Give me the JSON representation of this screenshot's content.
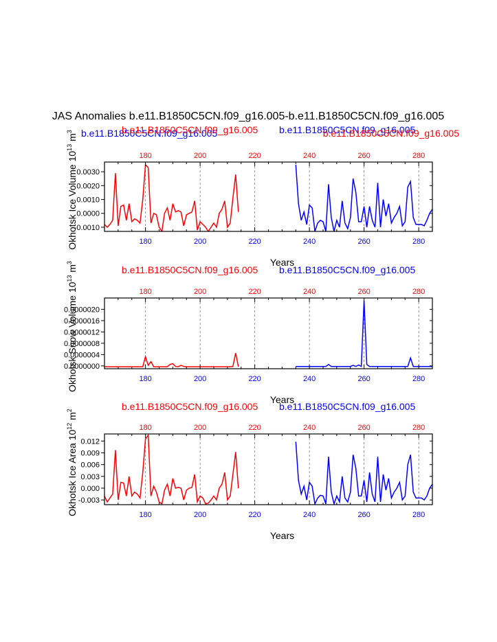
{
  "page_title": "JAS Anomalies b.e11.B1850C5CN.f09_g16.005-b.e11.B1850C5CN.f09_g16.005",
  "colors": {
    "run_a": "#ff0000",
    "run_b": "#0000ff",
    "axis": "#000000",
    "grid": "#777777"
  },
  "chart_data": [
    {
      "type": "line",
      "ylabel": "Okhotsk Ice Volume 10",
      "ylabel_sup": "13",
      "ylabel_unit": " m",
      "ylabel_unit_sup": "3",
      "xlabel": "Years",
      "xlim": [
        165,
        285
      ],
      "ylim": [
        -0.0013,
        0.0037
      ],
      "yticks": [
        "0.0030",
        "0.0020",
        "0.0010",
        "0.0000",
        "-0.0010"
      ],
      "ytick_values": [
        0.003,
        0.002,
        0.001,
        0.0,
        -0.001
      ],
      "xticks_bottom": [
        "180",
        "200",
        "220",
        "240",
        "260",
        "280"
      ],
      "xtick_values": [
        180,
        200,
        220,
        240,
        260,
        280
      ],
      "xticks_top": [
        "180",
        "200",
        "220",
        "240",
        "260",
        "280"
      ],
      "grid_x": [
        180,
        200,
        220,
        240,
        260,
        280
      ],
      "top_labels": [
        {
          "text": "b.e11.B1850C5CN.f09_g16.005",
          "color": "#0000ff"
        },
        {
          "text": "b.e11.B1850C5CN.f09_g16.005",
          "color": "#ff0000"
        },
        {
          "text": "b.e11.B1850C5CN.f09_g16.005",
          "color": "#0000ff"
        },
        {
          "text": "b.e11.B1850C5CN.f09_g16.005",
          "color": "#ff0000"
        }
      ],
      "series": [
        {
          "color": "#ff0000",
          "x": [
            165,
            166,
            167,
            168,
            169,
            170,
            171,
            172,
            173,
            174,
            175,
            176,
            177,
            178,
            179,
            180,
            181,
            182,
            183,
            184,
            185,
            186,
            187,
            188,
            189,
            190,
            191,
            192,
            193,
            194,
            195,
            196,
            197,
            198,
            199,
            200,
            201,
            202,
            203,
            204,
            205,
            206,
            207,
            208,
            209,
            210,
            211,
            212,
            213,
            214
          ],
          "y": [
            -0.0008,
            -0.001,
            -0.0008,
            -0.0005,
            0.0029,
            -0.0009,
            0.0005,
            0.0006,
            -0.0005,
            0.0007,
            -0.0006,
            -0.0004,
            -0.0005,
            -0.0007,
            0.001,
            0.0035,
            0.0033,
            -0.0007,
            0.0,
            -0.0001,
            -0.001,
            -0.0013,
            0.0,
            0.0004,
            -0.0005,
            0.0007,
            0.0001,
            0.0002,
            0.0001,
            -0.0009,
            -0.0001,
            0.0,
            0.0001,
            0.0009,
            -0.0012,
            -0.0006,
            -0.0008,
            -0.001,
            -0.0013,
            -0.001,
            -0.0007,
            -0.001,
            0.0,
            0.0003,
            0.0009,
            -0.001,
            -0.0007,
            0.0011,
            0.0028,
            0.0001
          ]
        },
        {
          "color": "#0000ff",
          "x": [
            235,
            236,
            237,
            238,
            239,
            240,
            241,
            242,
            243,
            244,
            245,
            246,
            247,
            248,
            249,
            250,
            251,
            252,
            253,
            254,
            255,
            256,
            257,
            258,
            259,
            260,
            261,
            262,
            263,
            264,
            265,
            266,
            267,
            268,
            269,
            270,
            271,
            272,
            273,
            274,
            275,
            276,
            277,
            278,
            279,
            280,
            281,
            282,
            283,
            284,
            285
          ],
          "y": [
            0.0035,
            0.0007,
            -0.0005,
            0.0001,
            -0.0008,
            0.0006,
            0.0004,
            -0.0013,
            -0.0007,
            -0.0005,
            -0.0006,
            -0.0013,
            0.0021,
            -0.0003,
            -0.0013,
            -0.0005,
            -0.001,
            0.0009,
            -0.0007,
            -0.0011,
            -0.0003,
            0.0025,
            0.0015,
            -0.0006,
            -0.0006,
            0.0005,
            -0.001,
            0.0005,
            -0.0005,
            -0.001,
            0.0022,
            -0.001,
            0.001,
            -0.0002,
            0.0007,
            -0.0007,
            -0.0003,
            0.0,
            0.0005,
            -0.0009,
            -0.0006,
            0.0019,
            0.0023,
            -0.0003,
            -0.0008,
            -0.0008,
            -0.0008,
            -0.0009,
            -0.0005,
            0.0,
            0.0003
          ]
        }
      ]
    },
    {
      "type": "line",
      "ylabel": "Okhotsk Snow Volume 10",
      "ylabel_sup": "13",
      "ylabel_unit": " m",
      "ylabel_unit_sup": "3",
      "xlabel": "Years",
      "xlim": [
        165,
        285
      ],
      "ylim": [
        -1e-07,
        2.4e-06
      ],
      "yticks": [
        "0.0000020",
        "0.0000016",
        "0.0000012",
        "0.0000008",
        "0.0000004",
        "0.0000000"
      ],
      "ytick_values": [
        2e-06,
        1.6e-06,
        1.2e-06,
        8e-07,
        4e-07,
        0.0
      ],
      "xticks_bottom": [
        "180",
        "200",
        "220",
        "240",
        "260",
        "280"
      ],
      "xtick_values": [
        180,
        200,
        220,
        240,
        260,
        280
      ],
      "xticks_top": [
        "180",
        "200",
        "220",
        "240",
        "260",
        "280"
      ],
      "grid_x": [
        180,
        200,
        220,
        240,
        260,
        280
      ],
      "top_labels": [
        {
          "text": "b.e11.B1850C5CN.f09_g16.005",
          "color": "#ff0000"
        },
        {
          "text": "b.e11.B1850C5CN.f09_g16.005",
          "color": "#0000ff"
        }
      ],
      "series": [
        {
          "color": "#ff0000",
          "x": [
            165,
            166,
            167,
            168,
            169,
            170,
            171,
            172,
            173,
            174,
            175,
            176,
            177,
            178,
            179,
            180,
            181,
            182,
            183,
            184,
            185,
            186,
            187,
            188,
            189,
            190,
            191,
            192,
            193,
            194,
            195,
            196,
            197,
            198,
            199,
            200,
            201,
            202,
            203,
            204,
            205,
            206,
            207,
            208,
            209,
            210,
            211,
            212,
            213,
            214
          ],
          "y": [
            -3e-08,
            -3e-08,
            -3e-08,
            -3e-08,
            -3e-08,
            -3e-08,
            -3e-08,
            -3e-08,
            -3e-08,
            -3e-08,
            -3e-08,
            -3e-08,
            -3e-08,
            -3e-08,
            -3e-08,
            3.3e-07,
            2e-08,
            1.5e-07,
            -3e-08,
            -3e-08,
            -3e-08,
            -3e-08,
            -3e-08,
            -3e-08,
            5e-08,
            8e-08,
            -2e-08,
            -3e-08,
            2e-08,
            -2e-08,
            -3e-08,
            -3e-08,
            -3e-08,
            -3e-08,
            -3e-08,
            -3e-08,
            -3e-08,
            -3e-08,
            -3e-08,
            -3e-08,
            -3e-08,
            -3e-08,
            -3e-08,
            -3e-08,
            -3e-08,
            -3e-08,
            -3e-08,
            -2e-08,
            4.5e-07,
            -3e-08
          ]
        },
        {
          "color": "#0000ff",
          "x": [
            235,
            236,
            237,
            238,
            239,
            240,
            241,
            242,
            243,
            244,
            245,
            246,
            247,
            248,
            249,
            250,
            251,
            252,
            253,
            254,
            255,
            256,
            257,
            258,
            259,
            260,
            261,
            262,
            263,
            264,
            265,
            266,
            267,
            268,
            269,
            270,
            271,
            272,
            273,
            274,
            275,
            276,
            277,
            278,
            279,
            280,
            281,
            282,
            283,
            284,
            285
          ],
          "y": [
            -2e-08,
            -2e-08,
            -2e-08,
            -2e-08,
            -2e-08,
            -2e-08,
            -2e-08,
            -2e-08,
            -2e-08,
            -2e-08,
            -2e-08,
            -2e-08,
            5e-08,
            -2e-08,
            -2e-08,
            -2e-08,
            -2e-08,
            -2e-08,
            -2e-08,
            -2e-08,
            -2e-08,
            2e-08,
            -2e-08,
            3e-08,
            -2e-08,
            2.3e-06,
            5e-08,
            -2e-08,
            -2e-08,
            -2e-08,
            -2e-08,
            -2e-08,
            -2e-08,
            -2e-08,
            -2e-08,
            -2e-08,
            -2e-08,
            -2e-08,
            -2e-08,
            -2e-08,
            -2e-08,
            -2e-08,
            2.8e-07,
            -2e-08,
            -2e-08,
            -2e-08,
            -2e-08,
            -2e-08,
            -2e-08,
            -2e-08,
            -2e-08
          ]
        }
      ]
    },
    {
      "type": "line",
      "ylabel": "Okhotsk Ice Area 10",
      "ylabel_sup": "12",
      "ylabel_unit": " m",
      "ylabel_unit_sup": "2",
      "xlabel": "Years",
      "xlim": [
        165,
        285
      ],
      "ylim": [
        -0.0042,
        0.0138
      ],
      "yticks": [
        "0.012",
        "0.009",
        "0.006",
        "0.003",
        "0.000",
        "-0.003"
      ],
      "ytick_values": [
        0.012,
        0.009,
        0.006,
        0.003,
        0.0,
        -0.003
      ],
      "xticks_bottom": [
        "180",
        "200",
        "220",
        "240",
        "260",
        "280"
      ],
      "xtick_values": [
        180,
        200,
        220,
        240,
        260,
        280
      ],
      "xticks_top": [
        "180",
        "200",
        "220",
        "240",
        "260",
        "280"
      ],
      "grid_x": [
        180,
        200,
        220,
        240,
        260,
        280
      ],
      "top_labels": [
        {
          "text": "b.e11.B1850C5CN.f09_g16.005",
          "color": "#ff0000"
        },
        {
          "text": "b.e11.B1850C5CN.f09_g16.005",
          "color": "#0000ff"
        }
      ],
      "series": [
        {
          "color": "#ff0000",
          "x": [
            165,
            166,
            167,
            168,
            169,
            170,
            171,
            172,
            173,
            174,
            175,
            176,
            177,
            178,
            179,
            180,
            181,
            182,
            183,
            184,
            185,
            186,
            187,
            188,
            189,
            190,
            191,
            192,
            193,
            194,
            195,
            196,
            197,
            198,
            199,
            200,
            201,
            202,
            203,
            204,
            205,
            206,
            207,
            208,
            209,
            210,
            211,
            212,
            213,
            214
          ],
          "y": [
            -0.002,
            -0.0035,
            -0.0025,
            -0.0015,
            0.0097,
            -0.003,
            0.0015,
            0.0013,
            -0.002,
            0.003,
            -0.002,
            -0.001,
            -0.0015,
            -0.0025,
            0.004,
            0.0125,
            0.0135,
            -0.002,
            0.0005,
            -0.001,
            -0.0035,
            -0.004,
            -0.0005,
            0.001,
            -0.002,
            0.0025,
            0.0,
            0.0002,
            0.0,
            -0.003,
            -0.0005,
            0.0,
            0.0002,
            0.0035,
            -0.0035,
            -0.002,
            -0.0025,
            -0.004,
            -0.0038,
            -0.003,
            -0.002,
            -0.003,
            0.0,
            0.001,
            0.004,
            -0.003,
            -0.002,
            0.0035,
            0.0092,
            0.0
          ]
        },
        {
          "color": "#0000ff",
          "x": [
            235,
            236,
            237,
            238,
            239,
            240,
            241,
            242,
            243,
            244,
            245,
            246,
            247,
            248,
            249,
            250,
            251,
            252,
            253,
            254,
            255,
            256,
            257,
            258,
            259,
            260,
            261,
            262,
            263,
            264,
            265,
            266,
            267,
            268,
            269,
            270,
            271,
            272,
            273,
            274,
            275,
            276,
            277,
            278,
            279,
            280,
            281,
            282,
            283,
            284,
            285
          ],
          "y": [
            0.0118,
            0.002,
            -0.0015,
            0.0005,
            -0.003,
            0.0015,
            0.0005,
            -0.004,
            -0.0025,
            -0.0018,
            -0.002,
            -0.004,
            0.008,
            -0.001,
            -0.004,
            -0.002,
            -0.0035,
            0.003,
            -0.0025,
            -0.0035,
            -0.001,
            0.0085,
            0.005,
            -0.002,
            -0.002,
            0.002,
            -0.0035,
            0.004,
            -0.0015,
            -0.0035,
            0.008,
            -0.0035,
            0.0035,
            -0.0005,
            0.0025,
            -0.0025,
            -0.001,
            0.0,
            0.0015,
            -0.003,
            -0.002,
            0.006,
            0.0085,
            -0.001,
            -0.0025,
            -0.0025,
            -0.0025,
            -0.003,
            -0.002,
            0.0,
            0.001
          ]
        }
      ]
    }
  ]
}
